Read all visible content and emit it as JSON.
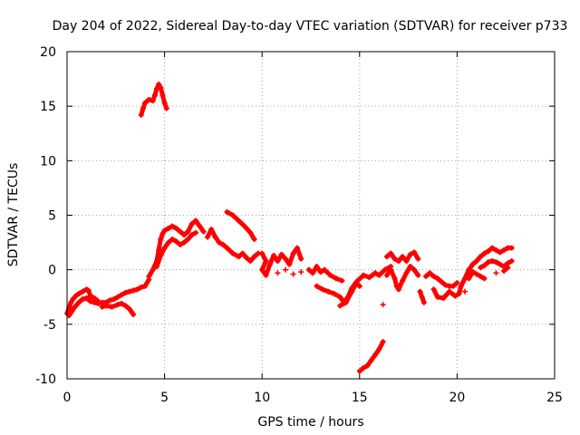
{
  "chart_data": {
    "type": "scatter",
    "title": "Day 204 of 2022, Sidereal Day-to-day VTEC variation (SDTVAR) for receiver p733",
    "xlabel": "GPS time / hours",
    "ylabel": "SDTVAR / TECUs",
    "xlim": [
      0,
      25
    ],
    "ylim": [
      -10,
      20
    ],
    "xticks": [
      0,
      5,
      10,
      15,
      20,
      25
    ],
    "yticks": [
      -10,
      -5,
      0,
      5,
      10,
      15,
      20
    ],
    "grid": true,
    "marker": "plus",
    "color": "#ff0000",
    "series": [
      {
        "name": "SDTVAR",
        "points": [
          [
            0.0,
            -4.0
          ],
          [
            0.1,
            -3.5
          ],
          [
            0.2,
            -3.0
          ],
          [
            0.3,
            -2.7
          ],
          [
            0.45,
            -2.4
          ],
          [
            0.6,
            -2.2
          ],
          [
            0.8,
            -2.0
          ],
          [
            1.0,
            -1.8
          ],
          [
            1.1,
            -1.9
          ],
          [
            1.2,
            -2.4
          ],
          [
            1.4,
            -2.6
          ],
          [
            1.6,
            -2.9
          ],
          [
            0.1,
            -4.2
          ],
          [
            0.25,
            -3.8
          ],
          [
            0.4,
            -3.4
          ],
          [
            0.6,
            -3.0
          ],
          [
            0.8,
            -2.7
          ],
          [
            1.0,
            -2.6
          ],
          [
            1.2,
            -2.9
          ],
          [
            1.4,
            -3.0
          ],
          [
            1.6,
            -3.1
          ],
          [
            1.8,
            -3.0
          ],
          [
            2.0,
            -3.0
          ],
          [
            2.2,
            -2.8
          ],
          [
            2.4,
            -2.7
          ],
          [
            2.6,
            -2.5
          ],
          [
            2.8,
            -2.3
          ],
          [
            3.0,
            -2.1
          ],
          [
            3.2,
            -2.0
          ],
          [
            3.4,
            -1.9
          ],
          [
            3.6,
            -1.8
          ],
          [
            3.8,
            -1.6
          ],
          [
            4.0,
            -1.5
          ],
          [
            4.2,
            -0.9
          ],
          [
            1.8,
            -3.4
          ],
          [
            2.0,
            -3.3
          ],
          [
            2.3,
            -3.4
          ],
          [
            2.6,
            -3.2
          ],
          [
            2.8,
            -3.1
          ],
          [
            3.0,
            -3.3
          ],
          [
            3.2,
            -3.6
          ],
          [
            3.4,
            -4.1
          ],
          [
            3.8,
            14.2
          ],
          [
            3.9,
            14.8
          ],
          [
            4.0,
            15.3
          ],
          [
            4.2,
            15.6
          ],
          [
            4.4,
            15.5
          ],
          [
            4.5,
            16.0
          ],
          [
            4.6,
            16.6
          ],
          [
            4.7,
            17.0
          ],
          [
            4.8,
            16.7
          ],
          [
            4.9,
            16.0
          ],
          [
            5.0,
            15.3
          ],
          [
            5.1,
            14.8
          ],
          [
            4.2,
            -0.6
          ],
          [
            4.4,
            0.0
          ],
          [
            4.6,
            0.8
          ],
          [
            4.7,
            1.8
          ],
          [
            4.8,
            2.8
          ],
          [
            4.9,
            3.3
          ],
          [
            5.0,
            3.6
          ],
          [
            5.2,
            3.8
          ],
          [
            5.4,
            4.0
          ],
          [
            5.6,
            3.8
          ],
          [
            5.8,
            3.5
          ],
          [
            6.0,
            3.2
          ],
          [
            6.2,
            3.5
          ],
          [
            6.4,
            4.2
          ],
          [
            6.6,
            4.5
          ],
          [
            6.8,
            4.0
          ],
          [
            7.0,
            3.5
          ],
          [
            4.6,
            0.3
          ],
          [
            4.8,
            1.3
          ],
          [
            5.0,
            2.0
          ],
          [
            5.2,
            2.5
          ],
          [
            5.4,
            2.8
          ],
          [
            5.6,
            2.6
          ],
          [
            5.8,
            2.3
          ],
          [
            6.0,
            2.5
          ],
          [
            6.2,
            2.8
          ],
          [
            6.4,
            3.2
          ],
          [
            6.6,
            3.4
          ],
          [
            7.2,
            3.0
          ],
          [
            7.4,
            3.7
          ],
          [
            7.6,
            3.0
          ],
          [
            7.8,
            2.5
          ],
          [
            8.0,
            2.3
          ],
          [
            8.2,
            2.0
          ],
          [
            8.5,
            1.5
          ],
          [
            8.8,
            1.2
          ],
          [
            9.0,
            1.5
          ],
          [
            9.2,
            1.1
          ],
          [
            9.4,
            0.8
          ],
          [
            9.6,
            1.2
          ],
          [
            9.8,
            1.5
          ],
          [
            8.2,
            5.3
          ],
          [
            8.5,
            5.0
          ],
          [
            8.8,
            4.5
          ],
          [
            9.1,
            4.0
          ],
          [
            9.4,
            3.4
          ],
          [
            9.6,
            2.8
          ],
          [
            10.0,
            1.5
          ],
          [
            10.2,
            0.8
          ],
          [
            10.0,
            0.0
          ],
          [
            10.2,
            -0.5
          ],
          [
            10.4,
            0.5
          ],
          [
            10.6,
            1.3
          ],
          [
            10.8,
            0.8
          ],
          [
            11.0,
            1.4
          ],
          [
            11.2,
            1.0
          ],
          [
            11.4,
            0.5
          ],
          [
            11.6,
            1.5
          ],
          [
            11.8,
            2.0
          ],
          [
            12.0,
            1.0
          ],
          [
            10.8,
            -0.3
          ],
          [
            11.2,
            0.0
          ],
          [
            11.6,
            -0.4
          ],
          [
            12.0,
            -0.2
          ],
          [
            12.4,
            0.0
          ],
          [
            12.6,
            -0.3
          ],
          [
            12.8,
            0.3
          ],
          [
            13.0,
            -0.2
          ],
          [
            13.2,
            0.0
          ],
          [
            13.5,
            -0.5
          ],
          [
            13.8,
            -0.8
          ],
          [
            14.1,
            -1.0
          ],
          [
            12.8,
            -1.5
          ],
          [
            13.1,
            -1.8
          ],
          [
            13.4,
            -2.0
          ],
          [
            13.7,
            -2.2
          ],
          [
            14.0,
            -2.5
          ],
          [
            14.2,
            -3.0
          ],
          [
            14.4,
            -2.5
          ],
          [
            14.6,
            -1.7
          ],
          [
            14.8,
            -1.2
          ],
          [
            15.0,
            -1.5
          ],
          [
            14.0,
            -3.3
          ],
          [
            14.3,
            -3.0
          ],
          [
            14.6,
            -2.0
          ],
          [
            14.9,
            -1.0
          ],
          [
            15.2,
            -0.5
          ],
          [
            15.5,
            -0.7
          ],
          [
            15.8,
            -0.3
          ],
          [
            16.0,
            -0.5
          ],
          [
            16.3,
            0.0
          ],
          [
            16.6,
            0.3
          ],
          [
            15.0,
            -9.3
          ],
          [
            15.2,
            -9.0
          ],
          [
            15.4,
            -8.8
          ],
          [
            15.6,
            -8.3
          ],
          [
            15.8,
            -7.8
          ],
          [
            16.0,
            -7.3
          ],
          [
            16.2,
            -6.6
          ],
          [
            16.2,
            -3.2
          ],
          [
            16.4,
            1.2
          ],
          [
            16.6,
            1.5
          ],
          [
            16.8,
            1.0
          ],
          [
            17.0,
            0.8
          ],
          [
            17.2,
            1.2
          ],
          [
            17.4,
            0.8
          ],
          [
            17.6,
            1.4
          ],
          [
            17.8,
            1.6
          ],
          [
            18.0,
            1.0
          ],
          [
            16.4,
            -0.5
          ],
          [
            16.6,
            0.0
          ],
          [
            16.8,
            -0.8
          ],
          [
            16.9,
            -1.5
          ],
          [
            17.0,
            -1.8
          ],
          [
            17.2,
            -1.0
          ],
          [
            17.4,
            -0.3
          ],
          [
            17.6,
            0.3
          ],
          [
            17.8,
            0.0
          ],
          [
            18.0,
            -0.5
          ],
          [
            18.1,
            -2.0
          ],
          [
            18.2,
            -2.5
          ],
          [
            18.3,
            -3.0
          ],
          [
            18.4,
            -0.6
          ],
          [
            18.6,
            -0.3
          ],
          [
            18.8,
            -0.6
          ],
          [
            19.0,
            -0.8
          ],
          [
            19.2,
            -1.1
          ],
          [
            19.4,
            -1.4
          ],
          [
            19.6,
            -1.5
          ],
          [
            19.8,
            -1.5
          ],
          [
            20.0,
            -1.2
          ],
          [
            18.8,
            -1.8
          ],
          [
            19.0,
            -2.5
          ],
          [
            19.3,
            -2.6
          ],
          [
            19.6,
            -2.0
          ],
          [
            19.9,
            -2.4
          ],
          [
            20.1,
            -2.2
          ],
          [
            20.2,
            -1.5
          ],
          [
            20.4,
            -0.8
          ],
          [
            20.6,
            0.0
          ],
          [
            20.8,
            0.5
          ],
          [
            21.0,
            0.8
          ],
          [
            21.2,
            1.2
          ],
          [
            21.4,
            1.5
          ],
          [
            21.6,
            1.7
          ],
          [
            21.8,
            2.0
          ],
          [
            22.0,
            1.8
          ],
          [
            22.2,
            1.6
          ],
          [
            22.4,
            1.8
          ],
          [
            22.6,
            2.0
          ],
          [
            22.8,
            2.0
          ],
          [
            21.2,
            0.2
          ],
          [
            21.4,
            0.4
          ],
          [
            21.6,
            0.7
          ],
          [
            21.8,
            0.8
          ],
          [
            22.0,
            0.7
          ],
          [
            22.2,
            0.5
          ],
          [
            22.4,
            0.3
          ],
          [
            22.6,
            0.6
          ],
          [
            22.8,
            0.8
          ],
          [
            20.4,
            -2.0
          ],
          [
            20.6,
            -0.8
          ],
          [
            20.8,
            -0.2
          ],
          [
            21.0,
            -0.4
          ],
          [
            21.2,
            -0.6
          ],
          [
            21.4,
            -0.8
          ],
          [
            22.0,
            -0.3
          ],
          [
            22.4,
            -0.1
          ],
          [
            22.6,
            0.2
          ]
        ]
      }
    ]
  }
}
